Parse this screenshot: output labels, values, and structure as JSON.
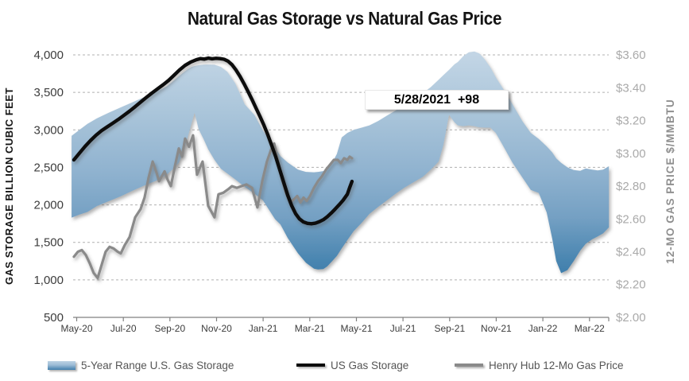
{
  "chart": {
    "title": "Natural Gas Storage vs Natural Gas Price",
    "annotation": {
      "text": "5/28/2021  +98"
    },
    "left_axis": {
      "title": "GAS STORAGE BILLION CUBIC FEET",
      "tick_labels": [
        "4,000",
        "3,500",
        "3,000",
        "2,500",
        "2,000",
        "1,500",
        "1,000",
        "500"
      ],
      "tick_values": [
        4000,
        3500,
        3000,
        2500,
        2000,
        1500,
        1000,
        500
      ],
      "color": "#3c3c3c"
    },
    "right_axis": {
      "title": "12-MO GAS PRICE $/MMBTU",
      "tick_labels": [
        "$3.60",
        "$3.40",
        "$3.20",
        "$3.00",
        "$2.80",
        "$2.60",
        "$2.40",
        "$2.20",
        "$2.00"
      ],
      "tick_values": [
        3.6,
        3.4,
        3.2,
        3.0,
        2.8,
        2.6,
        2.4,
        2.2,
        2.0
      ],
      "color": "#a9a9a9"
    },
    "x_axis": {
      "tick_labels": [
        "May-20",
        "Jul-20",
        "Sep-20",
        "Nov-20",
        "Jan-21",
        "Mar-21",
        "May-21",
        "Jul-21",
        "Sep-21",
        "Nov-21",
        "Jan-22",
        "Mar-22"
      ],
      "color": "#3c3c3c"
    },
    "legend": [
      {
        "label": "5-Year Range U.S. Gas Storage",
        "swatch": "area",
        "color_top": "#bcd2e3",
        "color_bottom": "#417fac"
      },
      {
        "label": "US Gas Storage",
        "swatch": "line",
        "color": "#0b0b0b"
      },
      {
        "label": "Henry Hub 12-Mo Gas Price",
        "swatch": "line",
        "color": "#8a8a8a"
      }
    ],
    "colors": {
      "band_gradient": [
        "#c2d5e5",
        "#aac5da",
        "#8fb2cf",
        "#74a0c3",
        "#4a86b1",
        "#2f73a4",
        "#2b6da0"
      ],
      "storage_line": "#0b0b0b",
      "price_line": "#8a8a8a",
      "gridline": "#b0b0b0",
      "axis_line": "#808080"
    }
  },
  "chart_data": {
    "type": "combo",
    "title": "Natural Gas Storage vs Natural Gas Price",
    "x_unit": "months since May-2020",
    "x_tick_labels": [
      "May-20",
      "Jul-20",
      "Sep-20",
      "Nov-20",
      "Jan-21",
      "Mar-21",
      "May-21",
      "Jul-21",
      "Sep-21",
      "Nov-21",
      "Jan-22",
      "Mar-22"
    ],
    "ylabel_left": "GAS STORAGE BILLION CUBIC FEET",
    "ylabel_right": "12-MO GAS PRICE $/MMBTU",
    "ylim_left": [
      500,
      4000
    ],
    "ylim_right": [
      2.0,
      3.6
    ],
    "grid": "dashed horizontal",
    "legend_position": "bottom",
    "annotation": {
      "date": "5/28/2021",
      "weekly_change": "+98"
    },
    "series": [
      {
        "name": "5-Year Range U.S. Gas Storage",
        "type": "area-band",
        "axis": "left",
        "points_m_lo_hi": [
          [
            -0.1,
            1830,
            2920
          ],
          [
            0.24,
            1870,
            3000
          ],
          [
            0.58,
            1905,
            3080
          ],
          [
            0.99,
            1985,
            3155
          ],
          [
            1.5,
            2050,
            3230
          ],
          [
            2.01,
            2115,
            3300
          ],
          [
            2.49,
            2185,
            3365
          ],
          [
            3.0,
            2255,
            3435
          ],
          [
            3.51,
            2320,
            3510
          ],
          [
            3.99,
            2405,
            3580
          ],
          [
            4.26,
            2480,
            3650
          ],
          [
            4.5,
            2560,
            3715
          ],
          [
            4.71,
            2720,
            3770
          ],
          [
            4.88,
            2900,
            3808
          ],
          [
            5.05,
            3090,
            3840
          ],
          [
            5.18,
            3230,
            3852
          ],
          [
            5.35,
            3010,
            3862
          ],
          [
            5.56,
            2880,
            3870
          ],
          [
            5.76,
            2740,
            3872
          ],
          [
            6.03,
            2600,
            3868
          ],
          [
            6.31,
            2480,
            3840
          ],
          [
            6.58,
            2420,
            3775
          ],
          [
            6.92,
            2340,
            3620
          ],
          [
            7.33,
            2240,
            3340
          ],
          [
            7.74,
            2150,
            3200
          ],
          [
            8.11,
            2060,
            2990
          ],
          [
            8.63,
            1810,
            2760
          ],
          [
            8.86,
            1740,
            2650
          ],
          [
            9.17,
            1560,
            2565
          ],
          [
            9.61,
            1355,
            2470
          ],
          [
            9.95,
            1230,
            2440
          ],
          [
            10.3,
            1150,
            2435
          ],
          [
            10.47,
            1140,
            2440
          ],
          [
            10.7,
            1145,
            2450
          ],
          [
            10.87,
            1180,
            2480
          ],
          [
            11.08,
            1250,
            2560
          ],
          [
            11.28,
            1320,
            2680
          ],
          [
            11.49,
            1420,
            2900
          ],
          [
            11.73,
            1530,
            2960
          ],
          [
            12.0,
            1650,
            3000
          ],
          [
            12.34,
            1760,
            3030
          ],
          [
            12.68,
            1880,
            3060
          ],
          [
            13.06,
            1975,
            3120
          ],
          [
            13.43,
            2060,
            3190
          ],
          [
            13.81,
            2150,
            3260
          ],
          [
            14.18,
            2230,
            3330
          ],
          [
            14.56,
            2300,
            3410
          ],
          [
            14.97,
            2375,
            3490
          ],
          [
            15.31,
            2470,
            3570
          ],
          [
            15.65,
            2580,
            3670
          ],
          [
            15.85,
            2800,
            3730
          ],
          [
            16.09,
            3200,
            3800
          ],
          [
            16.33,
            3100,
            3875
          ],
          [
            16.47,
            3060,
            3905
          ],
          [
            16.71,
            3050,
            3985
          ],
          [
            16.94,
            3060,
            4035
          ],
          [
            17.18,
            3050,
            4045
          ],
          [
            17.39,
            3035,
            4020
          ],
          [
            17.63,
            3030,
            3940
          ],
          [
            17.87,
            3030,
            3830
          ],
          [
            18.1,
            2960,
            3700
          ],
          [
            18.41,
            2790,
            3550
          ],
          [
            18.82,
            2560,
            3340
          ],
          [
            19.23,
            2370,
            3120
          ],
          [
            19.6,
            2200,
            2960
          ],
          [
            19.94,
            2160,
            2880
          ],
          [
            20.28,
            1900,
            2780
          ],
          [
            20.52,
            1550,
            2700
          ],
          [
            20.69,
            1250,
            2620
          ],
          [
            20.9,
            1090,
            2560
          ],
          [
            21.17,
            1130,
            2500
          ],
          [
            21.44,
            1250,
            2465
          ],
          [
            21.72,
            1390,
            2455
          ],
          [
            21.95,
            1480,
            2485
          ],
          [
            22.23,
            1540,
            2470
          ],
          [
            22.47,
            1580,
            2460
          ],
          [
            22.7,
            1620,
            2470
          ],
          [
            22.95,
            1700,
            2515
          ]
        ]
      },
      {
        "name": "US Gas Storage",
        "type": "line",
        "axis": "left",
        "points_m_v": [
          [
            0,
            2600
          ],
          [
            0.24,
            2690
          ],
          [
            0.48,
            2780
          ],
          [
            0.72,
            2860
          ],
          [
            0.95,
            2930
          ],
          [
            1.19,
            2990
          ],
          [
            1.43,
            3040
          ],
          [
            1.67,
            3090
          ],
          [
            1.91,
            3140
          ],
          [
            2.15,
            3195
          ],
          [
            2.39,
            3250
          ],
          [
            2.63,
            3310
          ],
          [
            2.86,
            3370
          ],
          [
            3.1,
            3430
          ],
          [
            3.34,
            3490
          ],
          [
            3.58,
            3545
          ],
          [
            3.82,
            3600
          ],
          [
            4.06,
            3660
          ],
          [
            4.3,
            3730
          ],
          [
            4.53,
            3800
          ],
          [
            4.77,
            3860
          ],
          [
            5.01,
            3905
          ],
          [
            5.25,
            3935
          ],
          [
            5.42,
            3950
          ],
          [
            5.59,
            3944
          ],
          [
            5.76,
            3956
          ],
          [
            5.93,
            3948
          ],
          [
            6.1,
            3954
          ],
          [
            6.27,
            3950
          ],
          [
            6.44,
            3942
          ],
          [
            6.61,
            3916
          ],
          [
            6.78,
            3870
          ],
          [
            6.95,
            3800
          ],
          [
            7.13,
            3712
          ],
          [
            7.3,
            3615
          ],
          [
            7.47,
            3512
          ],
          [
            7.64,
            3405
          ],
          [
            7.81,
            3292
          ],
          [
            7.98,
            3180
          ],
          [
            8.15,
            3062
          ],
          [
            8.32,
            2932
          ],
          [
            8.49,
            2790
          ],
          [
            8.66,
            2640
          ],
          [
            8.83,
            2470
          ],
          [
            9.0,
            2300
          ],
          [
            9.17,
            2130
          ],
          [
            9.34,
            1990
          ],
          [
            9.51,
            1882
          ],
          [
            9.68,
            1812
          ],
          [
            9.85,
            1772
          ],
          [
            10.02,
            1754
          ],
          [
            10.19,
            1748
          ],
          [
            10.36,
            1756
          ],
          [
            10.53,
            1776
          ],
          [
            10.7,
            1802
          ],
          [
            10.87,
            1842
          ],
          [
            11.04,
            1890
          ],
          [
            11.21,
            1945
          ],
          [
            11.38,
            2002
          ],
          [
            11.55,
            2062
          ],
          [
            11.73,
            2142
          ],
          [
            11.83,
            2230
          ],
          [
            11.93,
            2313
          ]
        ]
      },
      {
        "name": "Henry Hub 12-Mo Gas Price",
        "type": "line",
        "axis": "right",
        "points_m_v": [
          [
            0,
            2.37
          ],
          [
            0.17,
            2.4
          ],
          [
            0.34,
            2.41
          ],
          [
            0.51,
            2.38
          ],
          [
            0.68,
            2.33
          ],
          [
            0.85,
            2.27
          ],
          [
            1.02,
            2.24
          ],
          [
            1.19,
            2.32
          ],
          [
            1.36,
            2.4
          ],
          [
            1.53,
            2.43
          ],
          [
            1.7,
            2.42
          ],
          [
            1.88,
            2.4
          ],
          [
            2.01,
            2.39
          ],
          [
            2.18,
            2.44
          ],
          [
            2.39,
            2.49
          ],
          [
            2.63,
            2.61
          ],
          [
            2.86,
            2.66
          ],
          [
            3.03,
            2.73
          ],
          [
            3.2,
            2.85
          ],
          [
            3.38,
            2.95
          ],
          [
            3.55,
            2.88
          ],
          [
            3.65,
            2.83
          ],
          [
            3.89,
            2.89
          ],
          [
            4.02,
            2.84
          ],
          [
            4.16,
            2.8
          ],
          [
            4.33,
            2.92
          ],
          [
            4.5,
            3.03
          ],
          [
            4.64,
            2.98
          ],
          [
            4.77,
            3.09
          ],
          [
            4.94,
            3.04
          ],
          [
            5.11,
            3.11
          ],
          [
            5.28,
            2.87
          ],
          [
            5.52,
            2.95
          ],
          [
            5.76,
            2.68
          ],
          [
            6.03,
            2.61
          ],
          [
            6.2,
            2.75
          ],
          [
            6.41,
            2.76
          ],
          [
            6.61,
            2.78
          ],
          [
            6.78,
            2.8
          ],
          [
            6.99,
            2.79
          ],
          [
            7.19,
            2.8
          ],
          [
            7.4,
            2.81
          ],
          [
            7.64,
            2.79
          ],
          [
            7.87,
            2.67
          ],
          [
            8.08,
            2.83
          ],
          [
            8.28,
            2.95
          ],
          [
            8.45,
            3.02
          ],
          [
            8.59,
            3.06
          ],
          [
            8.76,
            2.95
          ],
          [
            8.93,
            2.84
          ],
          [
            9.1,
            2.76
          ],
          [
            9.27,
            2.7
          ],
          [
            9.44,
            2.72
          ],
          [
            9.58,
            2.74
          ],
          [
            9.72,
            2.7
          ],
          [
            9.85,
            2.73
          ],
          [
            9.99,
            2.71
          ],
          [
            10.13,
            2.74
          ],
          [
            10.3,
            2.79
          ],
          [
            10.47,
            2.83
          ],
          [
            10.64,
            2.86
          ],
          [
            10.81,
            2.9
          ],
          [
            10.98,
            2.93
          ],
          [
            11.15,
            2.96
          ],
          [
            11.32,
            2.96
          ],
          [
            11.45,
            2.94
          ],
          [
            11.59,
            2.97
          ],
          [
            11.73,
            2.96
          ],
          [
            11.83,
            2.98
          ],
          [
            11.93,
            2.97
          ]
        ]
      }
    ]
  }
}
